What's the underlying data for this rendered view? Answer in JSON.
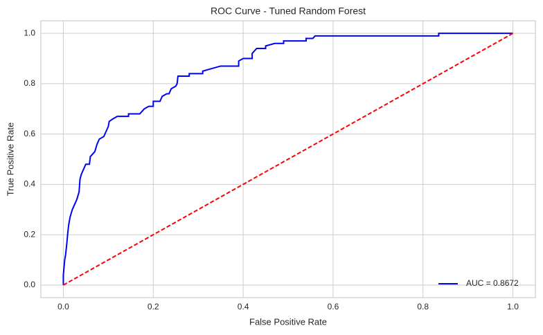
{
  "chart_data": {
    "type": "line",
    "title": "ROC Curve - Tuned Random Forest",
    "xlabel": "False Positive Rate",
    "ylabel": "True Positive Rate",
    "xlim": [
      -0.05,
      1.05
    ],
    "ylim": [
      -0.05,
      1.05
    ],
    "xticks": [
      {
        "value": 0,
        "label": "0.0"
      },
      0.2,
      0.4,
      0.6,
      0.8,
      {
        "value": 1,
        "label": "1.0"
      }
    ],
    "yticks": [
      {
        "value": 0,
        "label": "0.0"
      },
      0.2,
      0.4,
      0.6,
      0.8,
      {
        "value": 1,
        "label": "1.0"
      }
    ],
    "grid": true,
    "legend": "lower right",
    "series": [
      {
        "name": "AUC = 0.8672",
        "color": "#0000ff",
        "dash": false,
        "x": [
          0,
          0,
          0.003,
          0.005,
          0.008,
          0.01,
          0.012,
          0.015,
          0.02,
          0.025,
          0.03,
          0.035,
          0.037,
          0.04,
          0.045,
          0.05,
          0.058,
          0.06,
          0.07,
          0.075,
          0.08,
          0.09,
          0.095,
          0.1,
          0.102,
          0.11,
          0.12,
          0.145,
          0.145,
          0.17,
          0.18,
          0.19,
          0.2,
          0.2,
          0.215,
          0.22,
          0.23,
          0.235,
          0.24,
          0.25,
          0.253,
          0.255,
          0.28,
          0.28,
          0.31,
          0.31,
          0.33,
          0.35,
          0.39,
          0.39,
          0.4,
          0.42,
          0.42,
          0.43,
          0.45,
          0.45,
          0.47,
          0.49,
          0.49,
          0.54,
          0.54,
          0.555,
          0.56,
          0.835,
          0.835,
          1
        ],
        "y": [
          0,
          0.04,
          0.1,
          0.12,
          0.17,
          0.21,
          0.24,
          0.27,
          0.3,
          0.32,
          0.34,
          0.37,
          0.42,
          0.44,
          0.46,
          0.48,
          0.48,
          0.51,
          0.53,
          0.56,
          0.58,
          0.59,
          0.61,
          0.63,
          0.65,
          0.66,
          0.67,
          0.67,
          0.68,
          0.68,
          0.7,
          0.71,
          0.71,
          0.73,
          0.73,
          0.75,
          0.76,
          0.76,
          0.78,
          0.79,
          0.8,
          0.83,
          0.83,
          0.84,
          0.84,
          0.85,
          0.86,
          0.87,
          0.87,
          0.89,
          0.9,
          0.9,
          0.92,
          0.94,
          0.94,
          0.95,
          0.96,
          0.96,
          0.97,
          0.97,
          0.98,
          0.98,
          0.99,
          0.99,
          1,
          1
        ]
      },
      {
        "color": "#ff0000",
        "dash": true,
        "x": [
          0,
          1
        ],
        "y": [
          0,
          1
        ]
      }
    ]
  }
}
